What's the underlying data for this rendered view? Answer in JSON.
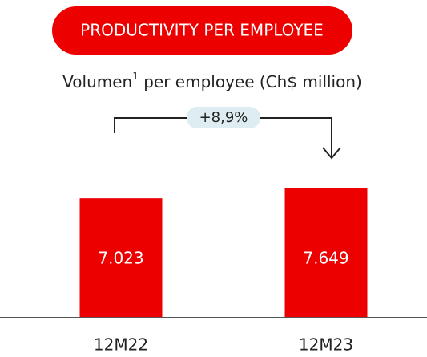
{
  "chart_data": {
    "type": "bar",
    "title": "PRODUCTIVITY PER EMPLOYEE",
    "subtitle": {
      "text": "Volumen",
      "footnote": "1",
      "rest": " per employee (Ch$ million)"
    },
    "annotation": "+8,9%",
    "categories": [
      "12M22",
      "12M23"
    ],
    "values": [
      7023,
      7649
    ],
    "value_labels": [
      "7.023",
      "7.649"
    ],
    "color": "#ec0000"
  }
}
